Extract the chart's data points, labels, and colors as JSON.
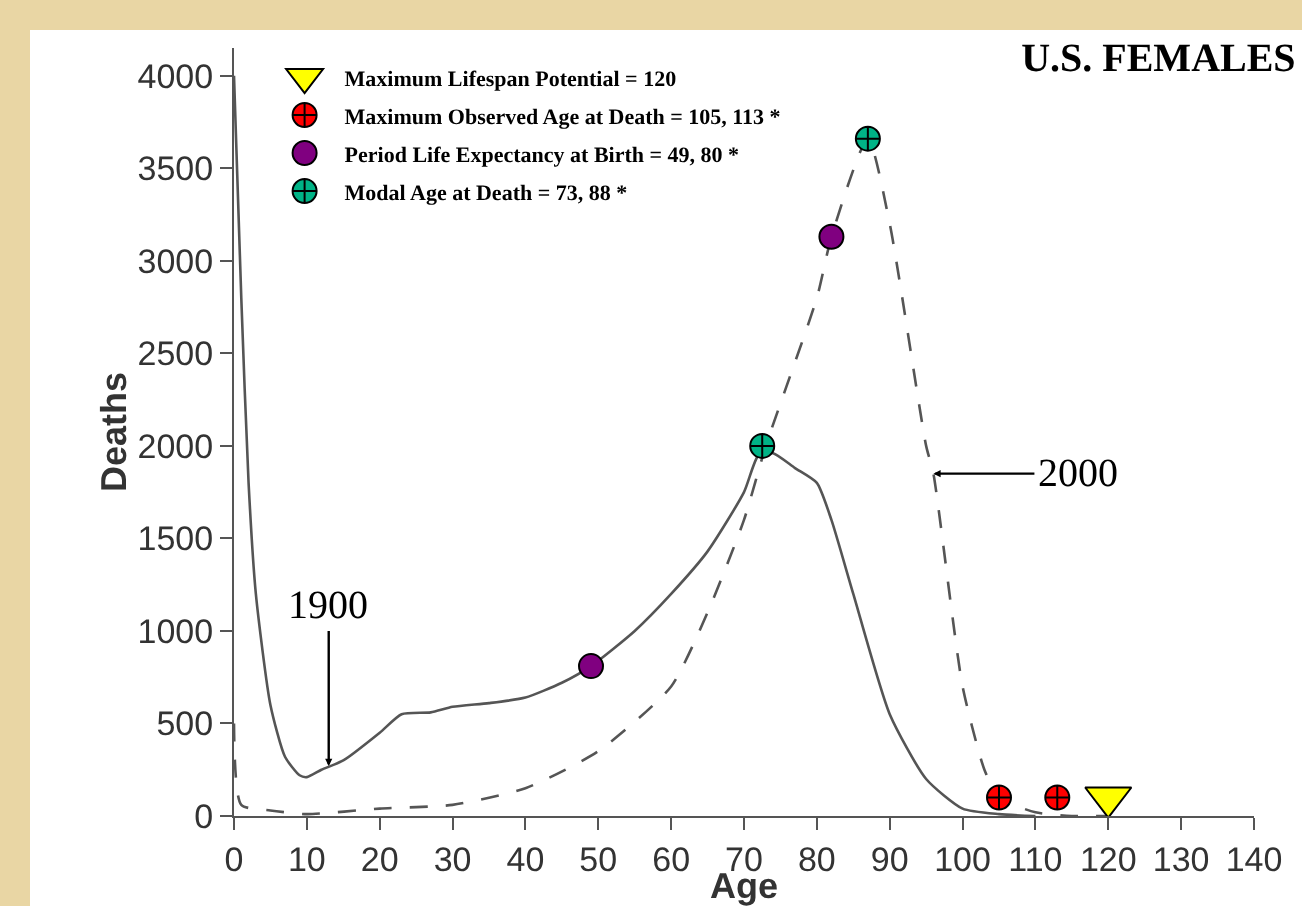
{
  "chart_data": {
    "type": "line",
    "title": "U.S. FEMALES",
    "xlabel": "Age",
    "ylabel": "Deaths",
    "xlim": [
      0,
      140
    ],
    "xticks": [
      0,
      10,
      20,
      30,
      40,
      50,
      60,
      70,
      80,
      90,
      100,
      110,
      120,
      130,
      140
    ],
    "ylim": [
      0,
      4150
    ],
    "yticks": [
      0,
      500,
      1000,
      1500,
      2000,
      2500,
      3000,
      3500,
      4000
    ],
    "grid": false,
    "legend": "top left",
    "series": [
      {
        "color": "#555555",
        "line_style": "solid",
        "marker": "none",
        "x": [
          0,
          1,
          2,
          3,
          5,
          7,
          9,
          10,
          12,
          15,
          20,
          23,
          27,
          30,
          35,
          40,
          45,
          49,
          55,
          60,
          65,
          70,
          72,
          74,
          77,
          80,
          82,
          85,
          90,
          95,
          100,
          105,
          110
        ],
        "values": [
          4000,
          2800,
          1800,
          1200,
          600,
          320,
          220,
          210,
          250,
          300,
          450,
          550,
          560,
          590,
          610,
          640,
          720,
          810,
          1000,
          1200,
          1430,
          1750,
          1950,
          1960,
          1880,
          1800,
          1600,
          1200,
          550,
          200,
          40,
          10,
          0
        ]
      },
      {
        "color": "#555555",
        "line_style": "dashed",
        "marker": "none",
        "x": [
          0,
          1,
          5,
          10,
          20,
          30,
          40,
          50,
          60,
          65,
          70,
          73,
          80,
          82,
          87,
          90,
          95,
          96,
          100,
          103,
          105,
          110,
          115,
          120
        ],
        "values": [
          500,
          60,
          30,
          10,
          40,
          60,
          150,
          350,
          700,
          1100,
          1600,
          2000,
          2800,
          3130,
          3660,
          3200,
          2000,
          1850,
          700,
          250,
          100,
          20,
          0,
          0
        ]
      },
      {
        "type": "scatter",
        "name": "Maximum Lifespan Potential = 120",
        "color": "#ffff00",
        "marker": "triangle",
        "x": [
          120
        ],
        "values": [
          100
        ]
      },
      {
        "type": "scatter",
        "name": "Maximum Observed Age at Death = 105, 113 *",
        "color": "#ff0000",
        "marker": "cross",
        "x": [
          105,
          113
        ],
        "values": [
          100,
          100
        ]
      },
      {
        "type": "scatter",
        "name": "Period Life Expectancy at Birth = 49, 80 *",
        "color": "#800080",
        "marker": "circle",
        "x": [
          49,
          82
        ],
        "values": [
          810,
          3130
        ]
      },
      {
        "type": "scatter",
        "name": "Modal Age at Death = 73, 88 *",
        "color": "#00b386",
        "marker": "cross",
        "x": [
          72.5,
          87
        ],
        "values": [
          2000,
          3660
        ]
      }
    ],
    "annotations": [
      {
        "text": "1900",
        "x": 13,
        "y": 270
      },
      {
        "text": "2000",
        "x": 96,
        "y": 1850
      }
    ]
  }
}
